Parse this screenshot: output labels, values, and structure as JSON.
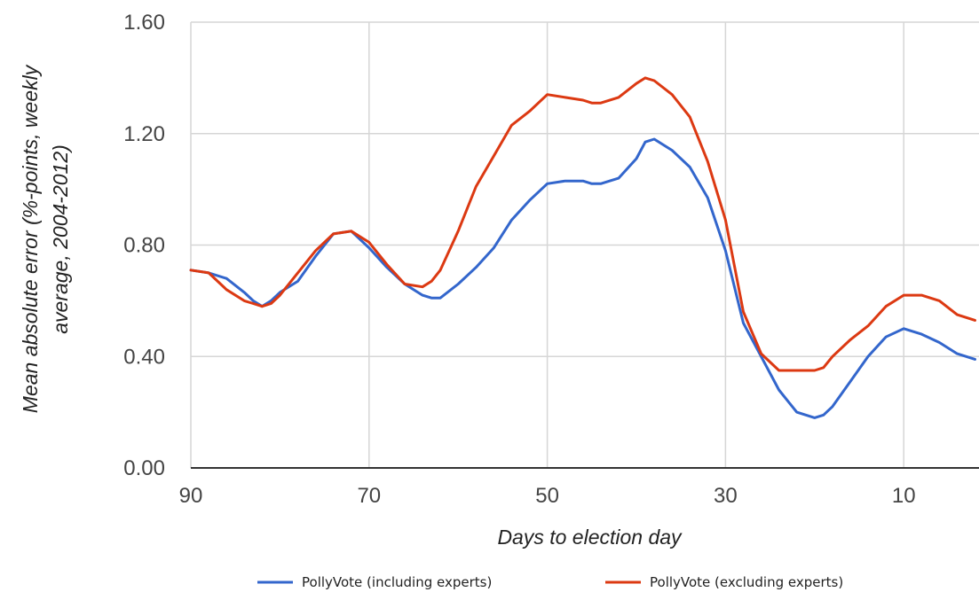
{
  "chart_data": {
    "type": "line",
    "title": "",
    "xlabel": "Days to election day",
    "ylabel_lines": [
      "Mean absolute error (%-points, weekly",
      "average, 2004-2012)"
    ],
    "xlim": [
      90,
      2
    ],
    "ylim": [
      0,
      1.6
    ],
    "xticks": [
      90,
      70,
      50,
      30,
      10
    ],
    "xtick_labels": [
      "90",
      "70",
      "50",
      "30",
      "10"
    ],
    "yticks": [
      0,
      0.4,
      0.8,
      1.2,
      1.6
    ],
    "ytick_labels": [
      "0.00",
      "0.40",
      "0.80",
      "1.20",
      "1.60"
    ],
    "grid": true,
    "legend_position": "bottom",
    "x": [
      90,
      88,
      86,
      84,
      83,
      82,
      81,
      80,
      78,
      76,
      74,
      72,
      70,
      68,
      66,
      64,
      63,
      62,
      60,
      58,
      56,
      54,
      52,
      50,
      48,
      46,
      45,
      44,
      42,
      40,
      39,
      38,
      36,
      34,
      32,
      30,
      28,
      26,
      24,
      22,
      20,
      19,
      18,
      16,
      14,
      12,
      10,
      8,
      6,
      4,
      2
    ],
    "series": [
      {
        "name": "PollyVote (including experts)",
        "color": "#3366cc",
        "values": [
          0.71,
          0.7,
          0.68,
          0.63,
          0.6,
          0.58,
          0.6,
          0.63,
          0.67,
          0.76,
          0.84,
          0.85,
          0.79,
          0.72,
          0.66,
          0.62,
          0.61,
          0.61,
          0.66,
          0.72,
          0.79,
          0.89,
          0.96,
          1.02,
          1.03,
          1.03,
          1.02,
          1.02,
          1.04,
          1.11,
          1.17,
          1.18,
          1.14,
          1.08,
          0.97,
          0.78,
          0.52,
          0.4,
          0.28,
          0.2,
          0.18,
          0.19,
          0.22,
          0.31,
          0.4,
          0.47,
          0.5,
          0.48,
          0.45,
          0.41,
          0.39
        ]
      },
      {
        "name": "PollyVote (excluding experts)",
        "color": "#dc3912",
        "values": [
          0.71,
          0.7,
          0.64,
          0.6,
          0.59,
          0.58,
          0.59,
          0.62,
          0.7,
          0.78,
          0.84,
          0.85,
          0.81,
          0.73,
          0.66,
          0.65,
          0.67,
          0.71,
          0.85,
          1.01,
          1.12,
          1.23,
          1.28,
          1.34,
          1.33,
          1.32,
          1.31,
          1.31,
          1.33,
          1.38,
          1.4,
          1.39,
          1.34,
          1.26,
          1.1,
          0.89,
          0.56,
          0.41,
          0.35,
          0.35,
          0.35,
          0.36,
          0.4,
          0.46,
          0.51,
          0.58,
          0.62,
          0.62,
          0.6,
          0.55,
          0.53
        ]
      }
    ]
  }
}
